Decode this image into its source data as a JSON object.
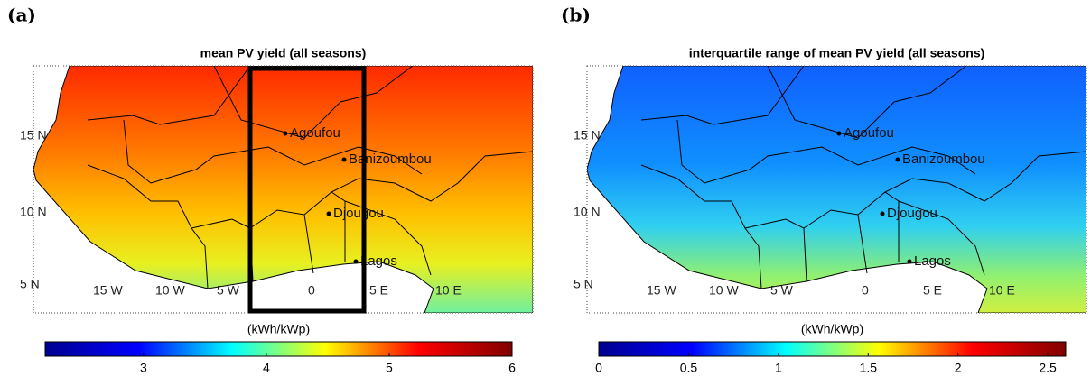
{
  "panels": [
    {
      "label": "(a)",
      "title": "mean PV yield (all seasons)",
      "lat_labels": [
        "15 N",
        "10 N",
        "5 N"
      ],
      "lon_labels": [
        "15 W",
        "10 W",
        "5 W",
        "0",
        "5 E",
        "10 E"
      ],
      "sites": [
        "Agoufou",
        "Banizoumbou",
        "Djougou",
        "Lagos"
      ],
      "study_box": true,
      "colorbar": {
        "label": "(kWh/kWp)",
        "range": [
          2.2,
          6
        ],
        "ticks": [
          3,
          4,
          5,
          6
        ],
        "colormap": [
          "#00008f",
          "#0000ff",
          "#00ffff",
          "#ffff00",
          "#ff0000",
          "#800000"
        ]
      }
    },
    {
      "label": "(b)",
      "title": "interquartile range of mean PV yield (all seasons)",
      "lat_labels": [
        "15 N",
        "10 N",
        "5 N"
      ],
      "lon_labels": [
        "15 W",
        "10 W",
        "5 W",
        "0",
        "5 E",
        "10 E"
      ],
      "sites": [
        "Agoufou",
        "Banizoumbou",
        "Djougou",
        "Lagos"
      ],
      "study_box": false,
      "colorbar": {
        "label": "(kWh/kWp)",
        "range": [
          0,
          2.6
        ],
        "ticks": [
          0,
          0.5,
          1,
          1.5,
          2,
          2.5
        ],
        "colormap": [
          "#00008f",
          "#0000ff",
          "#00ffff",
          "#ffff00",
          "#ff0000",
          "#800000"
        ]
      }
    }
  ]
}
